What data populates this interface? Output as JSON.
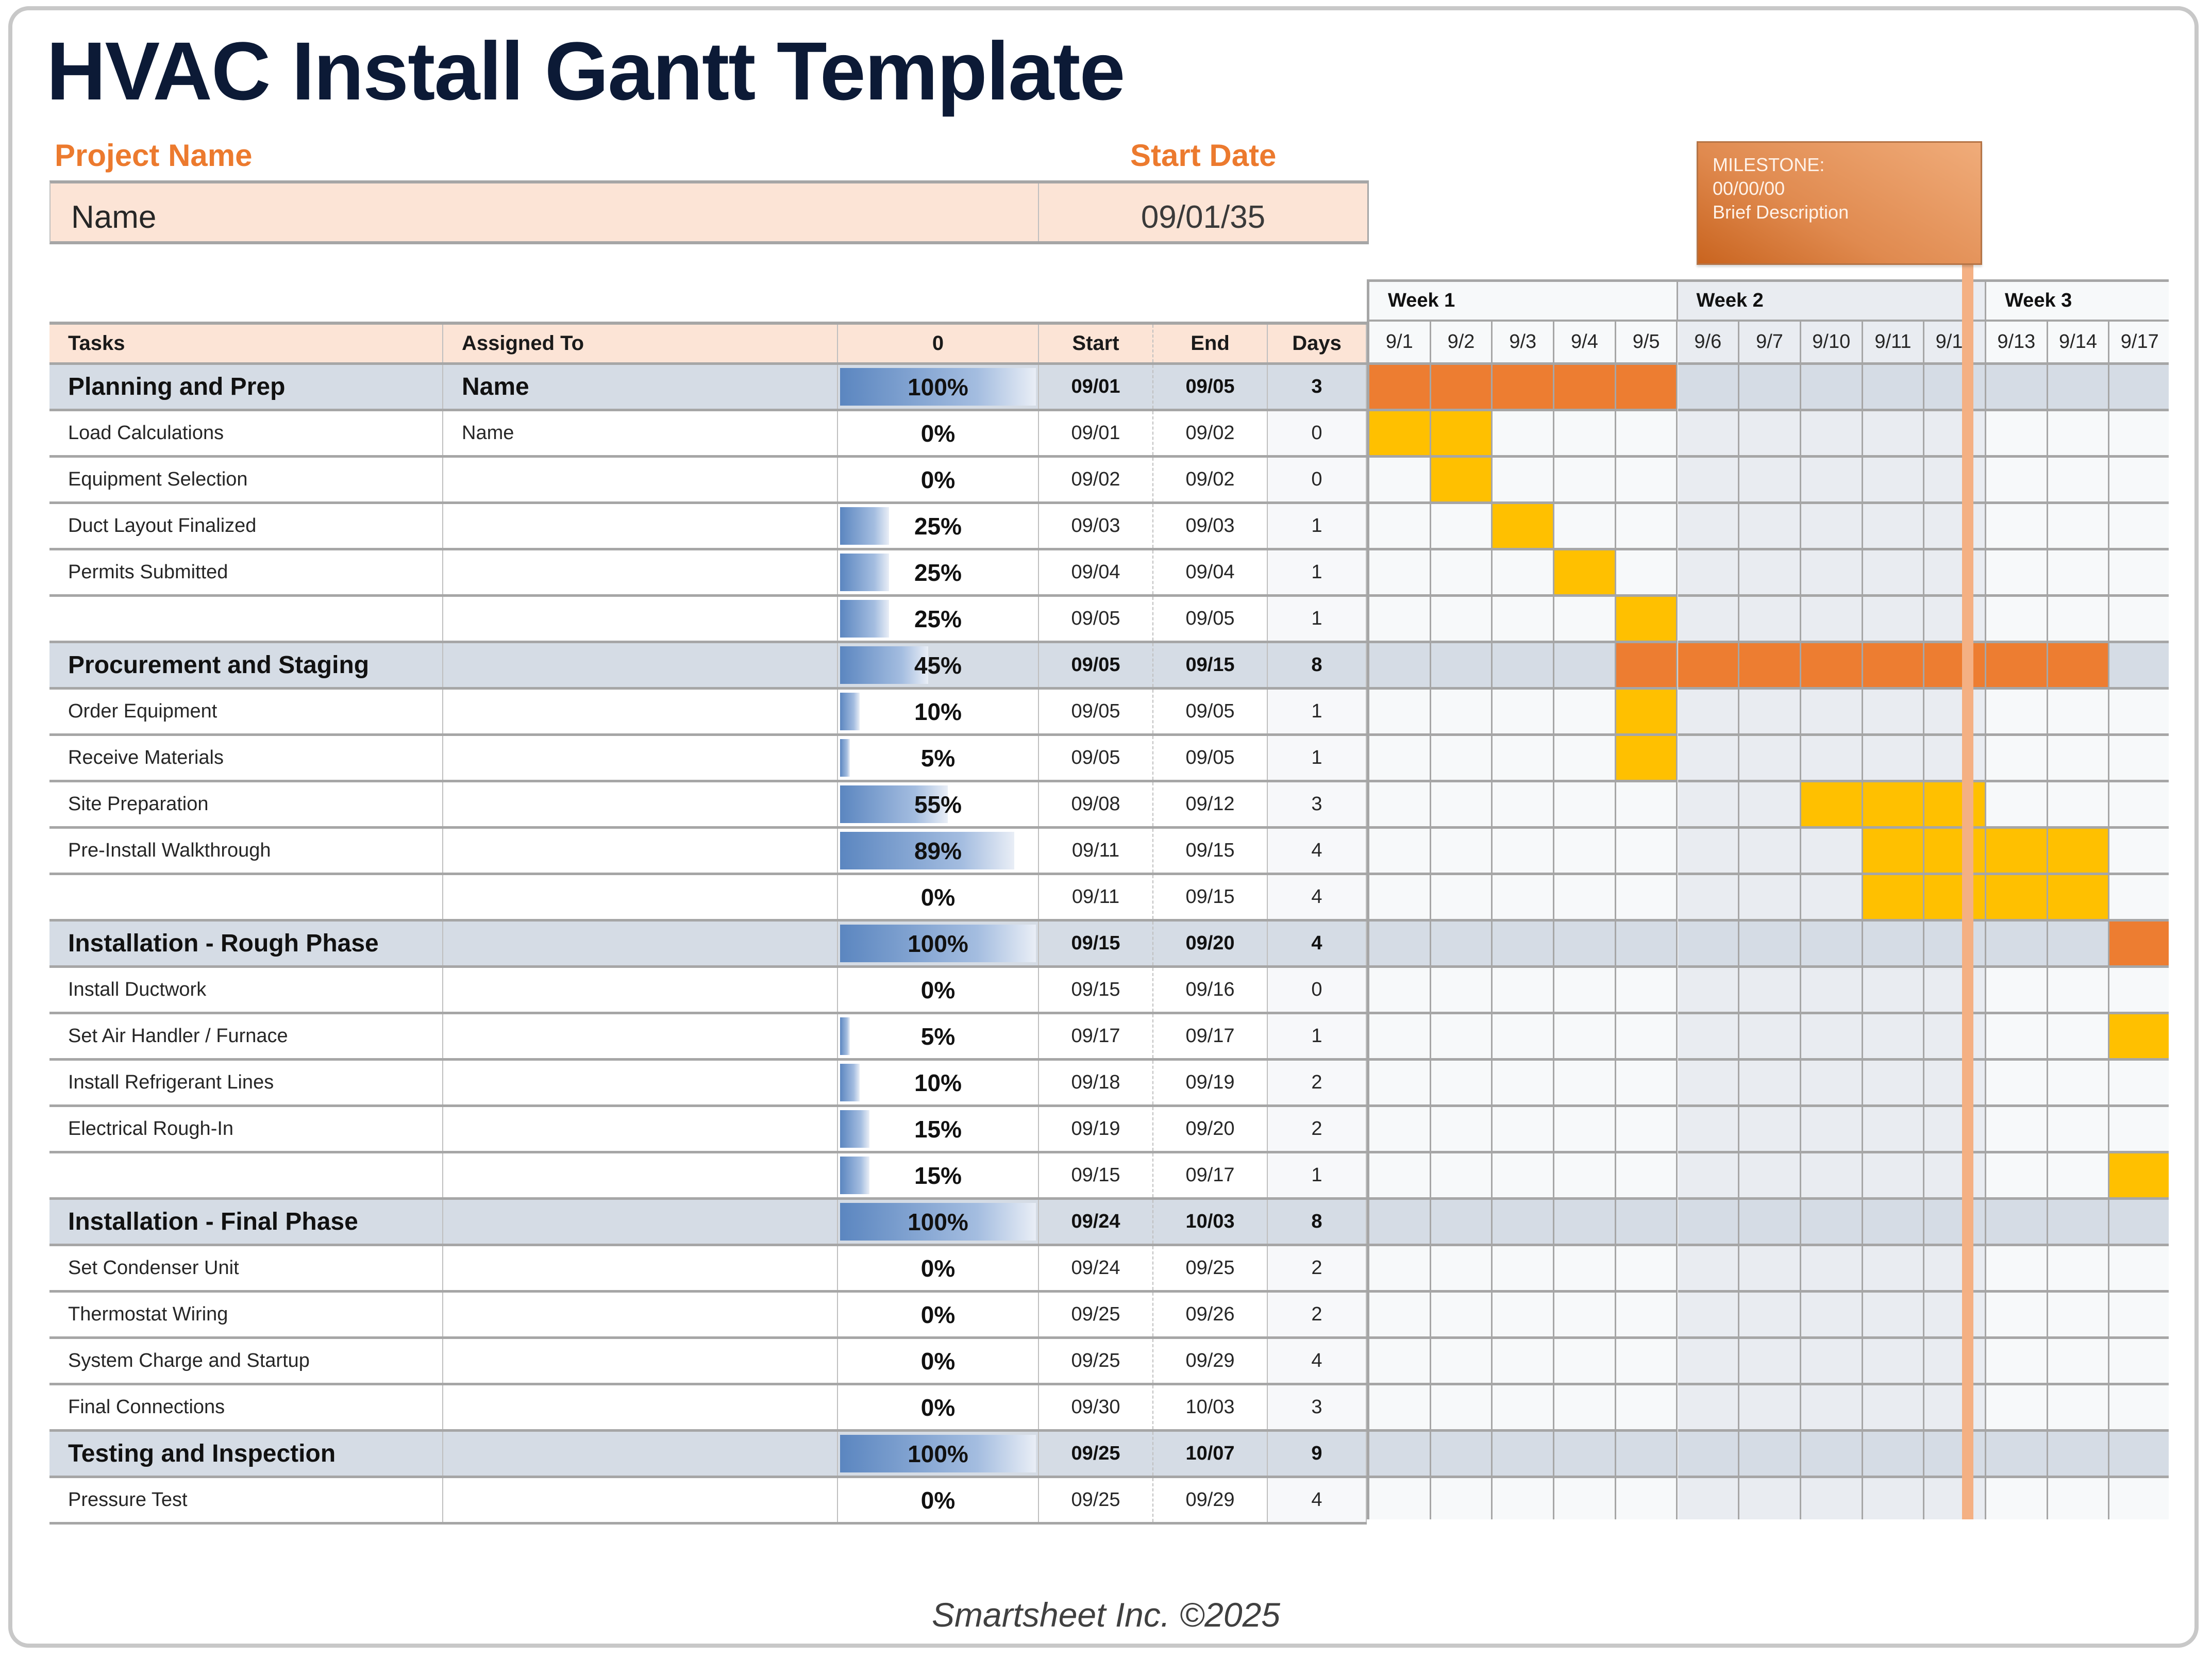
{
  "title": "HVAC Install Gantt Template",
  "project": {
    "name_label": "Project Name",
    "name_value": "Name",
    "start_label": "Start Date",
    "start_value": "09/01/35"
  },
  "milestone": {
    "line1": "MILESTONE:",
    "line2": "00/00/00",
    "line3": "Brief Description",
    "color": "#E07B39"
  },
  "table": {
    "headers": {
      "tasks": "Tasks",
      "assigned": "Assigned To",
      "pct": "0",
      "start": "Start",
      "end": "End",
      "days": "Days"
    },
    "rows": [
      {
        "type": "phase",
        "task": "Planning and Prep",
        "assigned": "Name",
        "pct": "100%",
        "pct_value": 100,
        "start": "09/01",
        "end": "09/05",
        "days": "3",
        "bar_start": 0,
        "bar_len": 5
      },
      {
        "type": "task",
        "task": "Load Calculations",
        "assigned": "Name",
        "pct": "0%",
        "pct_value": 0,
        "start": "09/01",
        "end": "09/02",
        "days": "0",
        "bar_start": 0,
        "bar_len": 2
      },
      {
        "type": "task",
        "task": "Equipment Selection",
        "assigned": "",
        "pct": "0%",
        "pct_value": 0,
        "start": "09/02",
        "end": "09/02",
        "days": "0",
        "bar_start": 1,
        "bar_len": 1
      },
      {
        "type": "task",
        "task": "Duct Layout Finalized",
        "assigned": "",
        "pct": "25%",
        "pct_value": 25,
        "start": "09/03",
        "end": "09/03",
        "days": "1",
        "bar_start": 2,
        "bar_len": 1
      },
      {
        "type": "task",
        "task": "Permits Submitted",
        "assigned": "",
        "pct": "25%",
        "pct_value": 25,
        "start": "09/04",
        "end": "09/04",
        "days": "1",
        "bar_start": 3,
        "bar_len": 1
      },
      {
        "type": "task",
        "task": "",
        "assigned": "",
        "pct": "25%",
        "pct_value": 25,
        "start": "09/05",
        "end": "09/05",
        "days": "1",
        "bar_start": 4,
        "bar_len": 1
      },
      {
        "type": "phase",
        "task": "Procurement and Staging",
        "assigned": "",
        "pct": "45%",
        "pct_value": 45,
        "start": "09/05",
        "end": "09/15",
        "days": "8",
        "bar_start": 4,
        "bar_len": 8
      },
      {
        "type": "task",
        "task": "Order Equipment",
        "assigned": "",
        "pct": "10%",
        "pct_value": 10,
        "start": "09/05",
        "end": "09/05",
        "days": "1",
        "bar_start": 4,
        "bar_len": 1
      },
      {
        "type": "task",
        "task": "Receive Materials",
        "assigned": "",
        "pct": "5%",
        "pct_value": 5,
        "start": "09/05",
        "end": "09/05",
        "days": "1",
        "bar_start": 4,
        "bar_len": 1
      },
      {
        "type": "task",
        "task": "Site Preparation",
        "assigned": "",
        "pct": "55%",
        "pct_value": 55,
        "start": "09/08",
        "end": "09/12",
        "days": "3",
        "bar_start": 7,
        "bar_len": 3
      },
      {
        "type": "task",
        "task": "Pre-Install Walkthrough",
        "assigned": "",
        "pct": "89%",
        "pct_value": 89,
        "start": "09/11",
        "end": "09/15",
        "days": "4",
        "bar_start": 8,
        "bar_len": 4
      },
      {
        "type": "task",
        "task": "",
        "assigned": "",
        "pct": "0%",
        "pct_value": 0,
        "start": "09/11",
        "end": "09/15",
        "days": "4",
        "bar_start": 8,
        "bar_len": 4
      },
      {
        "type": "phase",
        "task": "Installation - Rough Phase",
        "assigned": "",
        "pct": "100%",
        "pct_value": 100,
        "start": "09/15",
        "end": "09/20",
        "days": "4",
        "bar_start": 12,
        "bar_len": 1
      },
      {
        "type": "task",
        "task": "Install Ductwork",
        "assigned": "",
        "pct": "0%",
        "pct_value": 0,
        "start": "09/15",
        "end": "09/16",
        "days": "0",
        "bar_start": -1,
        "bar_len": 0
      },
      {
        "type": "task",
        "task": "Set Air Handler / Furnace",
        "assigned": "",
        "pct": "5%",
        "pct_value": 5,
        "start": "09/17",
        "end": "09/17",
        "days": "1",
        "bar_start": 12,
        "bar_len": 1
      },
      {
        "type": "task",
        "task": "Install Refrigerant Lines",
        "assigned": "",
        "pct": "10%",
        "pct_value": 10,
        "start": "09/18",
        "end": "09/19",
        "days": "2",
        "bar_start": -1,
        "bar_len": 0
      },
      {
        "type": "task",
        "task": "Electrical Rough-In",
        "assigned": "",
        "pct": "15%",
        "pct_value": 15,
        "start": "09/19",
        "end": "09/20",
        "days": "2",
        "bar_start": -1,
        "bar_len": 0
      },
      {
        "type": "task",
        "task": "",
        "assigned": "",
        "pct": "15%",
        "pct_value": 15,
        "start": "09/15",
        "end": "09/17",
        "days": "1",
        "bar_start": 12,
        "bar_len": 1
      },
      {
        "type": "phase",
        "task": "Installation - Final Phase",
        "assigned": "",
        "pct": "100%",
        "pct_value": 100,
        "start": "09/24",
        "end": "10/03",
        "days": "8",
        "bar_start": -1,
        "bar_len": 0
      },
      {
        "type": "task",
        "task": "Set Condenser Unit",
        "assigned": "",
        "pct": "0%",
        "pct_value": 0,
        "start": "09/24",
        "end": "09/25",
        "days": "2",
        "bar_start": -1,
        "bar_len": 0
      },
      {
        "type": "task",
        "task": "Thermostat Wiring",
        "assigned": "",
        "pct": "0%",
        "pct_value": 0,
        "start": "09/25",
        "end": "09/26",
        "days": "2",
        "bar_start": -1,
        "bar_len": 0
      },
      {
        "type": "task",
        "task": "System Charge and Startup",
        "assigned": "",
        "pct": "0%",
        "pct_value": 0,
        "start": "09/25",
        "end": "09/29",
        "days": "4",
        "bar_start": -1,
        "bar_len": 0
      },
      {
        "type": "task",
        "task": "Final Connections",
        "assigned": "",
        "pct": "0%",
        "pct_value": 0,
        "start": "09/30",
        "end": "10/03",
        "days": "3",
        "bar_start": -1,
        "bar_len": 0
      },
      {
        "type": "phase",
        "task": "Testing and Inspection",
        "assigned": "",
        "pct": "100%",
        "pct_value": 100,
        "start": "09/25",
        "end": "10/07",
        "days": "9",
        "bar_start": -1,
        "bar_len": 0
      },
      {
        "type": "task",
        "task": "Pressure Test",
        "assigned": "",
        "pct": "0%",
        "pct_value": 0,
        "start": "09/25",
        "end": "09/29",
        "days": "4",
        "bar_start": -1,
        "bar_len": 0
      }
    ]
  },
  "gantt": {
    "weeks": [
      {
        "label": "Week 1",
        "span": 5
      },
      {
        "label": "Week 2",
        "span": 5
      },
      {
        "label": "Week 3",
        "span": 3
      }
    ],
    "days": [
      "9/1",
      "9/2",
      "9/3",
      "9/4",
      "9/5",
      "9/6",
      "9/7",
      "9/10",
      "9/11",
      "9/12",
      "9/13",
      "9/14",
      "9/17"
    ],
    "colors": {
      "phase_bar": "#ED7D31",
      "task_bar": "#FFC000",
      "week_shade": "#E9ECF1",
      "base": "#F7F9FA",
      "phase_row": "#D5DCE5",
      "milestone_line": "#F4B083"
    }
  },
  "footer": "Smartsheet Inc. ©2025"
}
